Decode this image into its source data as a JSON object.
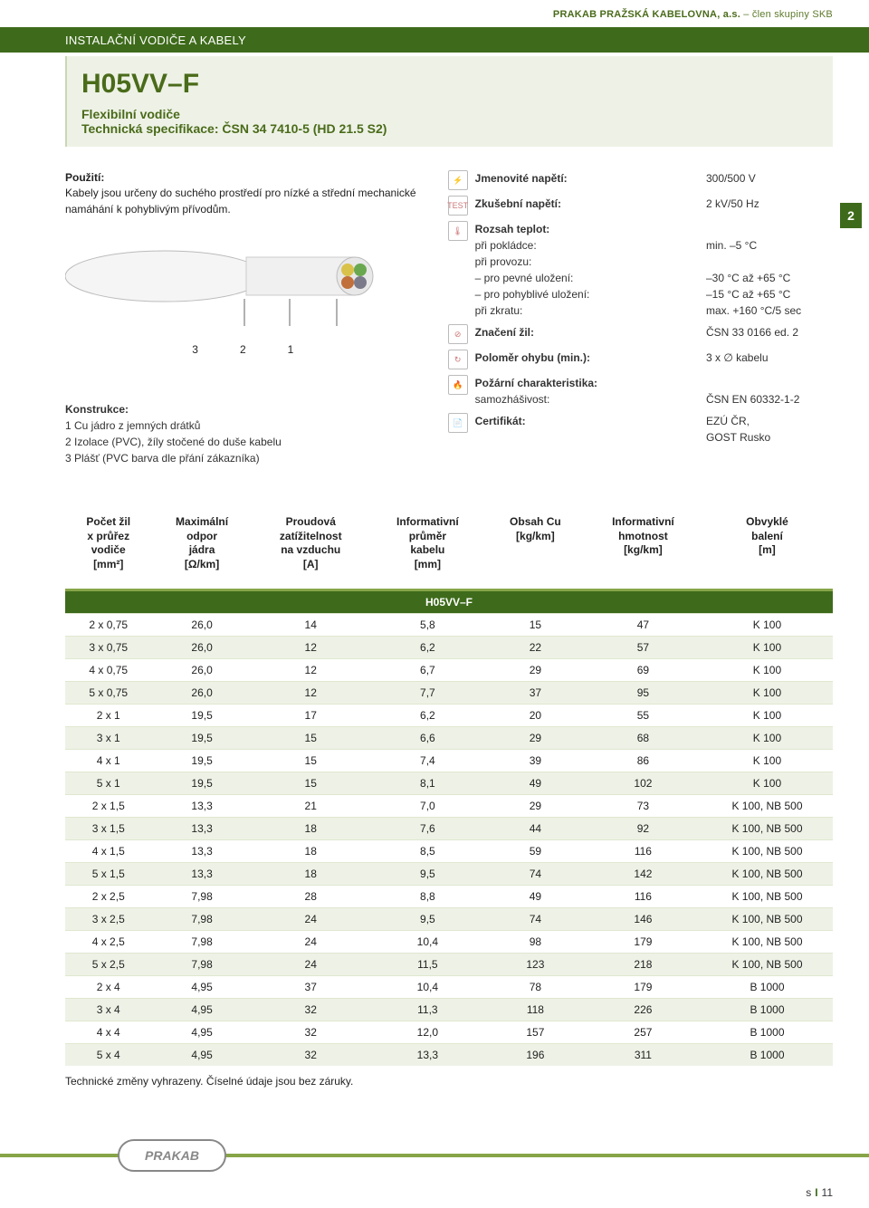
{
  "colors": {
    "brand_green": "#3e6b1b",
    "accent_green": "#87a548",
    "light_green_bg": "#eef2e6",
    "olive_text": "#4a6b1a",
    "text": "#222222",
    "border_light": "#dfe7d0"
  },
  "header": {
    "company_bold": "PRAKAB PRAŽSKÁ KABELOVNA, a.s.",
    "company_suffix": " – člen skupiny SKB",
    "section_label": "INSTALAČNÍ VODIČE A KABELY"
  },
  "title": {
    "product_code": "H05VV–F",
    "subtitle1": "Flexibilní vodiče",
    "subtitle2": "Technická specifikace: ČSN 34 7410-5 (HD 21.5 S2)"
  },
  "page_tab": "2",
  "usage": {
    "heading": "Použití:",
    "text": "Kabely jsou určeny do suchého prostředí pro nízké a střední mechanické namáhání k pohyblivým přívodům."
  },
  "cable_diagram": {
    "labels": [
      "3",
      "2",
      "1"
    ]
  },
  "konstrukce": {
    "heading": "Konstrukce:",
    "items": [
      "1  Cu jádro z jemných drátků",
      "2  Izolace (PVC), žíly stočené do duše kabelu",
      "3  Plášť (PVC barva dle přání zákazníka)"
    ]
  },
  "specs": [
    {
      "icon": "volt",
      "rows": [
        {
          "k": "Jmenovité napětí:",
          "v": "300/500 V",
          "bold": true
        }
      ]
    },
    {
      "icon": "test",
      "rows": [
        {
          "k": "Zkušební napětí:",
          "v": "2 kV/50 Hz",
          "bold": true
        }
      ]
    },
    {
      "icon": "temp",
      "rows": [
        {
          "k": "Rozsah teplot:",
          "v": "",
          "bold": true
        },
        {
          "k": "při pokládce:",
          "v": "min. –5 °C"
        },
        {
          "k": "při provozu:",
          "v": ""
        },
        {
          "k": "– pro pevné uložení:",
          "v": "–30 °C až +65 °C"
        },
        {
          "k": "– pro pohyblivé uložení:",
          "v": "–15 °C až +65 °C"
        },
        {
          "k": "při zkratu:",
          "v": "max. +160 °C/5 sec"
        }
      ]
    },
    {
      "icon": "mark",
      "rows": [
        {
          "k": "Značení žil:",
          "v": "ČSN 33 0166 ed. 2",
          "bold": true
        }
      ]
    },
    {
      "icon": "bend",
      "rows": [
        {
          "k": "Poloměr ohybu (min.):",
          "v": "3 x ∅ kabelu",
          "bold": true
        }
      ]
    },
    {
      "icon": "fire",
      "rows": [
        {
          "k": "Požární charakteristika:",
          "v": "",
          "bold": true
        },
        {
          "k": "samozhášivost:",
          "v": "ČSN EN 60332-1-2"
        }
      ]
    },
    {
      "icon": "cert",
      "rows": [
        {
          "k": "Certifikát:",
          "v": "EZÚ ČR,",
          "bold": true
        },
        {
          "k": "",
          "v": "GOST Rusko"
        }
      ]
    }
  ],
  "table": {
    "columns": [
      "Počet žil\nx průřez\nvodiče\n[mm²]",
      "Maximální\nodpor\njádra\n[Ω/km]",
      "Proudová\nzatížitelnost\nna vzduchu\n[A]",
      "Informativní\nprůměr\nkabelu\n[mm]",
      "Obsah Cu\n[kg/km]",
      "Informativní\nhmotnost\n[kg/km]",
      "Obvyklé\nbalení\n[m]"
    ],
    "section_label": "H05VV–F",
    "rows": [
      [
        "2 x 0,75",
        "26,0",
        "14",
        "5,8",
        "15",
        "47",
        "K 100"
      ],
      [
        "3 x 0,75",
        "26,0",
        "12",
        "6,2",
        "22",
        "57",
        "K 100"
      ],
      [
        "4 x 0,75",
        "26,0",
        "12",
        "6,7",
        "29",
        "69",
        "K 100"
      ],
      [
        "5 x 0,75",
        "26,0",
        "12",
        "7,7",
        "37",
        "95",
        "K 100"
      ],
      [
        "2 x 1",
        "19,5",
        "17",
        "6,2",
        "20",
        "55",
        "K 100"
      ],
      [
        "3 x 1",
        "19,5",
        "15",
        "6,6",
        "29",
        "68",
        "K 100"
      ],
      [
        "4 x 1",
        "19,5",
        "15",
        "7,4",
        "39",
        "86",
        "K 100"
      ],
      [
        "5 x 1",
        "19,5",
        "15",
        "8,1",
        "49",
        "102",
        "K 100"
      ],
      [
        "2 x 1,5",
        "13,3",
        "21",
        "7,0",
        "29",
        "73",
        "K 100, NB 500"
      ],
      [
        "3 x 1,5",
        "13,3",
        "18",
        "7,6",
        "44",
        "92",
        "K 100, NB 500"
      ],
      [
        "4 x 1,5",
        "13,3",
        "18",
        "8,5",
        "59",
        "116",
        "K 100, NB 500"
      ],
      [
        "5 x 1,5",
        "13,3",
        "18",
        "9,5",
        "74",
        "142",
        "K 100, NB 500"
      ],
      [
        "2 x 2,5",
        "7,98",
        "28",
        "8,8",
        "49",
        "116",
        "K 100, NB 500"
      ],
      [
        "3 x 2,5",
        "7,98",
        "24",
        "9,5",
        "74",
        "146",
        "K 100, NB 500"
      ],
      [
        "4 x 2,5",
        "7,98",
        "24",
        "10,4",
        "98",
        "179",
        "K 100, NB 500"
      ],
      [
        "5 x 2,5",
        "7,98",
        "24",
        "11,5",
        "123",
        "218",
        "K 100, NB 500"
      ],
      [
        "2 x 4",
        "4,95",
        "37",
        "10,4",
        "78",
        "179",
        "B 1000"
      ],
      [
        "3 x 4",
        "4,95",
        "32",
        "11,3",
        "118",
        "226",
        "B 1000"
      ],
      [
        "4 x 4",
        "4,95",
        "32",
        "12,0",
        "157",
        "257",
        "B 1000"
      ],
      [
        "5 x 4",
        "4,95",
        "32",
        "13,3",
        "196",
        "311",
        "B 1000"
      ]
    ],
    "footnote": "Technické změny vyhrazeny. Číselné údaje jsou bez záruky."
  },
  "footer": {
    "logo_text": "PRAKAB",
    "page_prefix": "s",
    "page_number": "11"
  }
}
